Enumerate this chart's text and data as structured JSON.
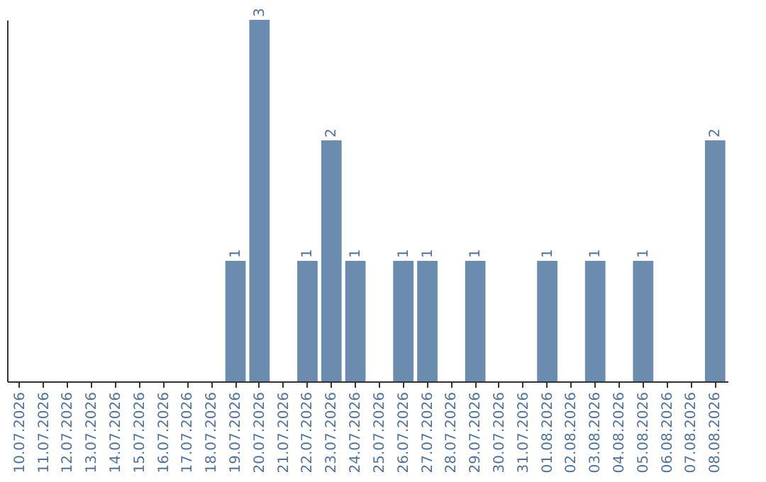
{
  "chart_data": {
    "type": "bar",
    "categories": [
      "10.07.2026",
      "11.07.2026",
      "12.07.2026",
      "13.07.2026",
      "14.07.2026",
      "15.07.2026",
      "16.07.2026",
      "17.07.2026",
      "18.07.2026",
      "19.07.2026",
      "20.07.2026",
      "21.07.2026",
      "22.07.2026",
      "23.07.2026",
      "24.07.2026",
      "25.07.2026",
      "26.07.2026",
      "27.07.2026",
      "28.07.2026",
      "29.07.2026",
      "30.07.2026",
      "31.07.2026",
      "01.08.2026",
      "02.08.2026",
      "03.08.2026",
      "04.08.2026",
      "05.08.2026",
      "06.08.2026",
      "07.08.2026",
      "08.08.2026"
    ],
    "values": [
      0,
      0,
      0,
      0,
      0,
      0,
      0,
      0,
      0,
      1,
      3,
      0,
      1,
      2,
      1,
      0,
      1,
      1,
      0,
      1,
      0,
      0,
      1,
      0,
      1,
      0,
      1,
      0,
      0,
      2
    ],
    "value_labels": [
      null,
      null,
      null,
      null,
      null,
      null,
      null,
      null,
      null,
      "1",
      "3",
      null,
      "1",
      "2",
      "1",
      null,
      "1",
      "1",
      null,
      "1",
      null,
      null,
      "1",
      null,
      "1",
      null,
      "1",
      null,
      null,
      "2"
    ],
    "color": "#6b8cae",
    "tick_labels": "x",
    "grid": false
  }
}
